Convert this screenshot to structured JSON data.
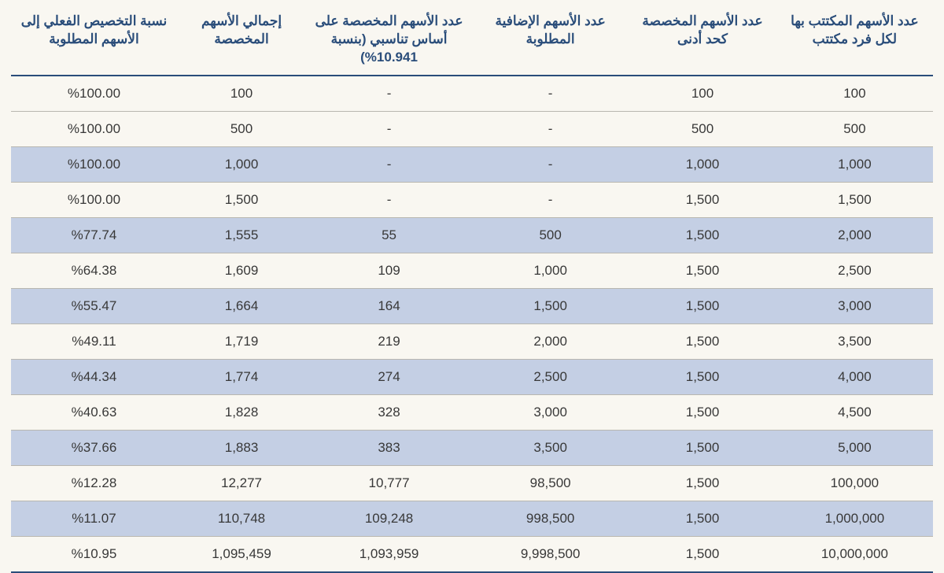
{
  "table": {
    "columns": [
      "عدد الأسهم المكتتب بها لكل فرد مكتتب",
      "عدد الأسهم المخصصة كحد أدنى",
      "عدد الأسهم الإضافية المطلوبة",
      "عدد الأسهم المخصصة على أساس تناسبي (بنسبة 10.941%)",
      "إجمالي الأسهم المخصصة",
      "نسبة التخصيص الفعلي إلى الأسهم المطلوبة"
    ],
    "rows": [
      [
        "100",
        "100",
        "-",
        "-",
        "100",
        "%100.00"
      ],
      [
        "500",
        "500",
        "-",
        "-",
        "500",
        "%100.00"
      ],
      [
        "1,000",
        "1,000",
        "-",
        "-",
        "1,000",
        "%100.00"
      ],
      [
        "1,500",
        "1,500",
        "-",
        "-",
        "1,500",
        "%100.00"
      ],
      [
        "2,000",
        "1,500",
        "500",
        "55",
        "1,555",
        "%77.74"
      ],
      [
        "2,500",
        "1,500",
        "1,000",
        "109",
        "1,609",
        "%64.38"
      ],
      [
        "3,000",
        "1,500",
        "1,500",
        "164",
        "1,664",
        "%55.47"
      ],
      [
        "3,500",
        "1,500",
        "2,000",
        "219",
        "1,719",
        "%49.11"
      ],
      [
        "4,000",
        "1,500",
        "2,500",
        "274",
        "1,774",
        "%44.34"
      ],
      [
        "4,500",
        "1,500",
        "3,000",
        "328",
        "1,828",
        "%40.63"
      ],
      [
        "5,000",
        "1,500",
        "3,500",
        "383",
        "1,883",
        "%37.66"
      ],
      [
        "100,000",
        "1,500",
        "98,500",
        "10,777",
        "12,277",
        "%12.28"
      ],
      [
        "1,000,000",
        "1,500",
        "998,500",
        "109,248",
        "110,748",
        "%11.07"
      ],
      [
        "10,000,000",
        "1,500",
        "9,998,500",
        "1,093,959",
        "1,095,459",
        "%10.95"
      ]
    ],
    "alt_row_indices": [
      2,
      4,
      6,
      8,
      10,
      12
    ],
    "colors": {
      "header_text": "#2a4d7a",
      "header_border": "#2a4d7a",
      "body_text": "#383838",
      "row_border": "#b9b7b0",
      "alt_row_bg": "#c4cfe4",
      "page_bg": "#f9f7f1"
    },
    "font_sizes": {
      "header": 17,
      "body": 17
    }
  }
}
